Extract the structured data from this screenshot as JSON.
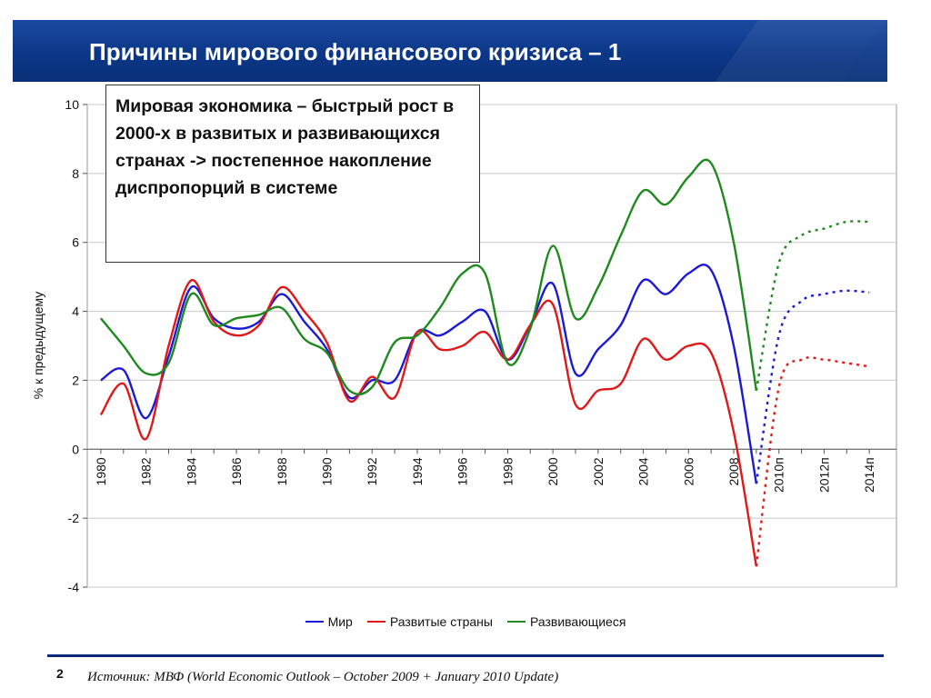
{
  "title": "Причины мирового финансового кризиса – 1",
  "callout": "Мировая экономика – быстрый рост в 2000-х в развитых и развивающихся странах -> постепенное накопление диспропорций в системе",
  "source": "Источник: МВФ (World Economic Outlook – October 2009 + January 2010 Update)",
  "page_number": "2",
  "chart_data": {
    "type": "line",
    "ylabel": "% к предыдущему",
    "ylim": [
      -4,
      10
    ],
    "yticks": [
      -4,
      -2,
      0,
      2,
      4,
      6,
      8,
      10
    ],
    "x": [
      1980,
      1981,
      1982,
      1983,
      1984,
      1985,
      1986,
      1987,
      1988,
      1989,
      1990,
      1991,
      1992,
      1993,
      1994,
      1995,
      1996,
      1997,
      1998,
      1999,
      2000,
      2001,
      2002,
      2003,
      2004,
      2005,
      2006,
      2007,
      2008,
      2009,
      2010,
      2011,
      2012,
      2013,
      2014
    ],
    "x_tick_labels": [
      "1980",
      "1982",
      "1984",
      "1986",
      "1988",
      "1990",
      "1992",
      "1994",
      "1996",
      "1998",
      "2000",
      "2002",
      "2004",
      "2006",
      "2008",
      "2010п",
      "2012п",
      "2014п"
    ],
    "forecast_from": 2009,
    "grid": "horizontal",
    "legend": "bottom",
    "series": [
      {
        "name": "Мир",
        "color": "#1a1ad6",
        "values": [
          2.0,
          2.3,
          0.9,
          2.7,
          4.7,
          3.8,
          3.5,
          3.7,
          4.5,
          3.7,
          2.9,
          1.5,
          2.0,
          2.0,
          3.4,
          3.3,
          3.7,
          4.0,
          2.6,
          3.6,
          4.8,
          2.2,
          2.9,
          3.6,
          4.9,
          4.5,
          5.1,
          5.2,
          3.0,
          -1.0,
          3.3,
          4.3,
          4.5,
          4.6,
          4.55
        ]
      },
      {
        "name": "Развитые страны",
        "color": "#e01818",
        "values": [
          1.0,
          1.9,
          0.3,
          3.0,
          4.9,
          3.7,
          3.3,
          3.6,
          4.7,
          4.0,
          3.1,
          1.4,
          2.1,
          1.5,
          3.4,
          2.9,
          3.0,
          3.4,
          2.6,
          3.6,
          4.2,
          1.3,
          1.7,
          1.9,
          3.2,
          2.6,
          3.0,
          2.8,
          0.5,
          -3.4,
          1.8,
          2.6,
          2.6,
          2.5,
          2.4
        ]
      },
      {
        "name": "Развивающиеся",
        "color": "#1e8a1e",
        "values": [
          3.8,
          3.0,
          2.2,
          2.5,
          4.5,
          3.6,
          3.8,
          3.9,
          4.1,
          3.2,
          2.8,
          1.7,
          1.8,
          3.1,
          3.3,
          4.1,
          5.1,
          5.1,
          2.5,
          3.5,
          5.9,
          3.8,
          4.7,
          6.2,
          7.5,
          7.1,
          7.9,
          8.3,
          6.0,
          1.7,
          5.4,
          6.2,
          6.4,
          6.6,
          6.6
        ]
      }
    ]
  }
}
